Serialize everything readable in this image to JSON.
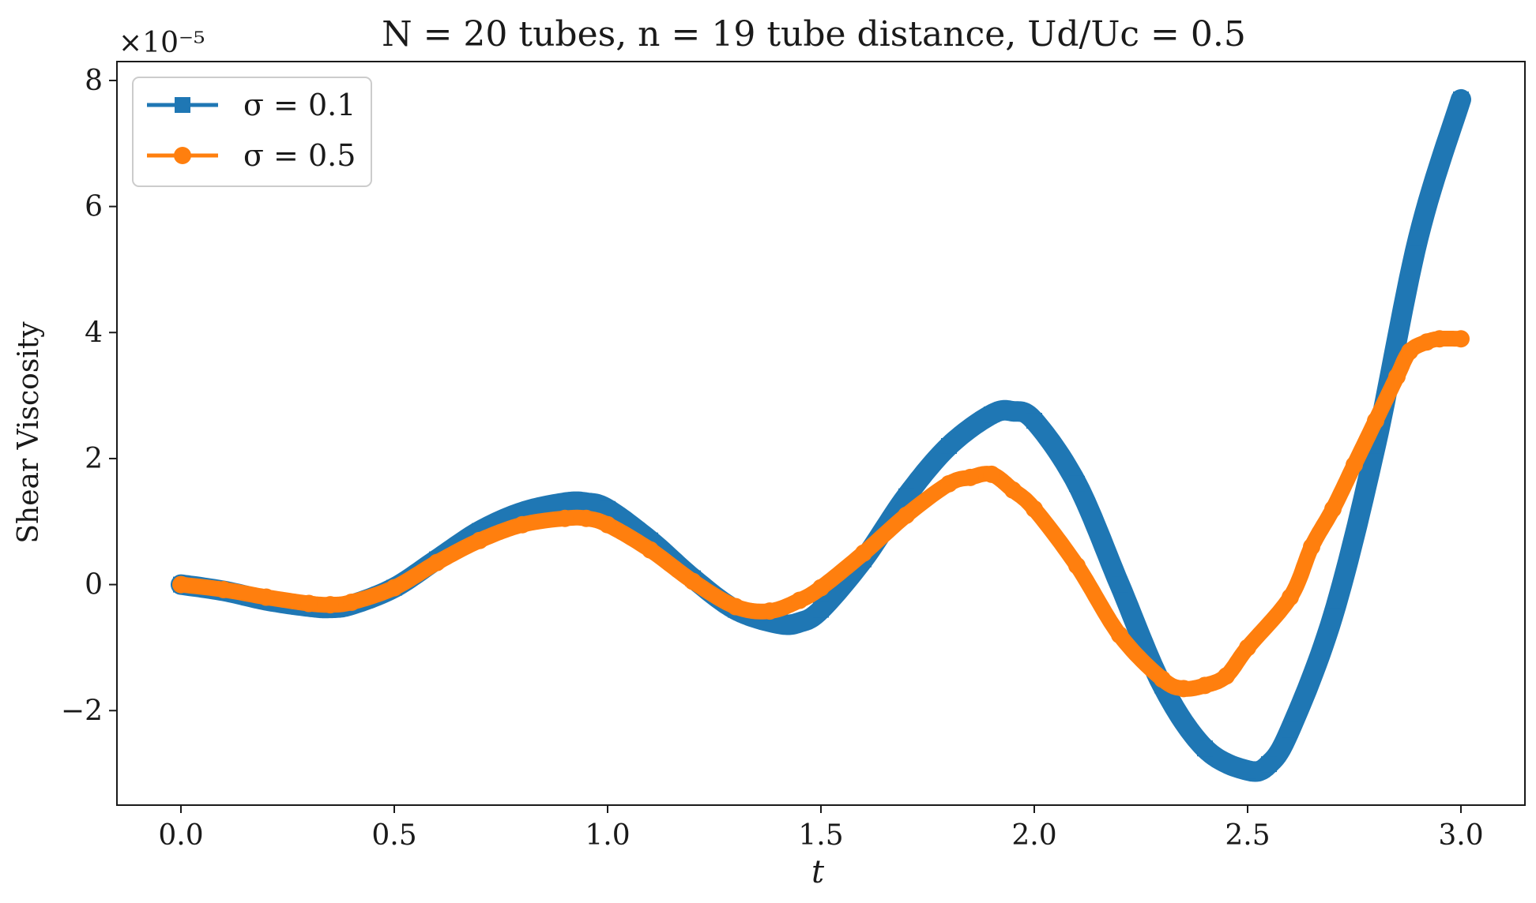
{
  "chart_data": {
    "type": "line",
    "title": "N = 20 tubes, n = 19 tube distance, Ud/Uc = 0.5",
    "xlabel": "t",
    "ylabel": "Shear Viscosity",
    "y_offset_label": "×10⁻⁵",
    "xlim": [
      -0.15,
      3.15
    ],
    "ylim": [
      -3.5,
      8.3
    ],
    "y_scale_factor": 1e-05,
    "x_ticks": [
      0.0,
      0.5,
      1.0,
      1.5,
      2.0,
      2.5,
      3.0
    ],
    "x_tick_labels": [
      "0.0",
      "0.5",
      "1.0",
      "1.5",
      "2.0",
      "2.5",
      "3.0"
    ],
    "y_ticks": [
      -2,
      0,
      2,
      4,
      6,
      8
    ],
    "y_tick_labels": [
      "−2",
      "0",
      "2",
      "4",
      "6",
      "8"
    ],
    "grid": false,
    "legend_position": "top-left",
    "series": [
      {
        "name": "σ = 0.1",
        "color": "#1f77b4",
        "marker": "square",
        "x": [
          0.0,
          0.1,
          0.2,
          0.3,
          0.35,
          0.4,
          0.5,
          0.6,
          0.7,
          0.8,
          0.9,
          0.95,
          1.0,
          1.1,
          1.2,
          1.3,
          1.4,
          1.45,
          1.5,
          1.6,
          1.7,
          1.8,
          1.9,
          1.95,
          2.0,
          2.1,
          2.2,
          2.3,
          2.4,
          2.5,
          2.55,
          2.6,
          2.7,
          2.8,
          2.9,
          3.0
        ],
        "y": [
          0.0,
          -0.1,
          -0.25,
          -0.35,
          -0.37,
          -0.32,
          -0.05,
          0.4,
          0.85,
          1.15,
          1.3,
          1.3,
          1.2,
          0.7,
          0.1,
          -0.4,
          -0.62,
          -0.6,
          -0.4,
          0.4,
          1.4,
          2.2,
          2.7,
          2.75,
          2.6,
          1.6,
          0.0,
          -1.6,
          -2.6,
          -2.95,
          -2.85,
          -2.3,
          -0.5,
          2.2,
          5.5,
          7.7
        ]
      },
      {
        "name": "σ = 0.5",
        "color": "#ff7f0e",
        "marker": "circle",
        "x": [
          0.0,
          0.1,
          0.2,
          0.3,
          0.35,
          0.4,
          0.5,
          0.6,
          0.7,
          0.8,
          0.9,
          0.95,
          1.0,
          1.1,
          1.2,
          1.3,
          1.38,
          1.45,
          1.5,
          1.6,
          1.7,
          1.8,
          1.85,
          1.9,
          1.95,
          2.0,
          2.1,
          2.2,
          2.3,
          2.35,
          2.4,
          2.45,
          2.5,
          2.6,
          2.65,
          2.7,
          2.75,
          2.8,
          2.85,
          2.88,
          2.92,
          2.95,
          3.0
        ],
        "y": [
          0.0,
          -0.08,
          -0.2,
          -0.3,
          -0.32,
          -0.28,
          -0.05,
          0.35,
          0.7,
          0.95,
          1.05,
          1.05,
          0.95,
          0.55,
          0.05,
          -0.35,
          -0.42,
          -0.25,
          -0.05,
          0.5,
          1.1,
          1.6,
          1.7,
          1.75,
          1.5,
          1.2,
          0.3,
          -0.8,
          -1.5,
          -1.65,
          -1.6,
          -1.45,
          -1.0,
          -0.2,
          0.6,
          1.2,
          1.9,
          2.6,
          3.3,
          3.7,
          3.85,
          3.9,
          3.9
        ]
      }
    ]
  }
}
